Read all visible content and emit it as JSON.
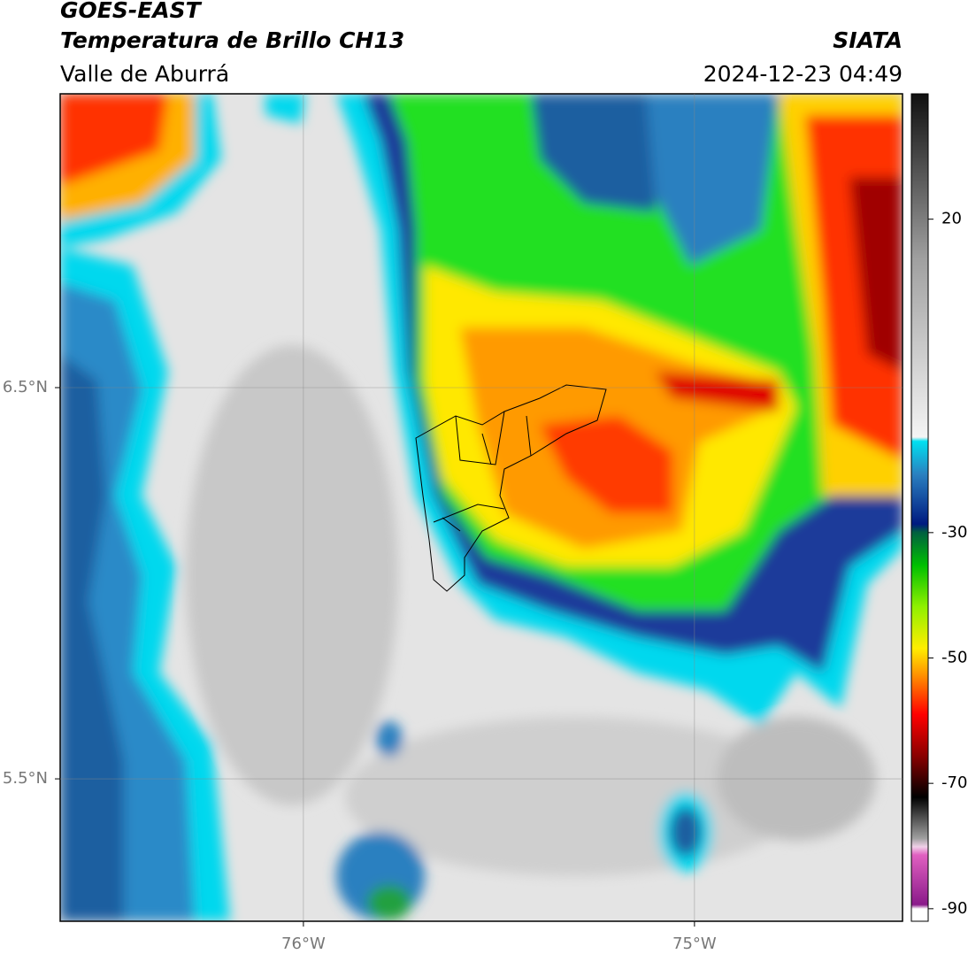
{
  "header": {
    "satellite": "GOES-EAST",
    "product": "Temperatura de Brillo CH13",
    "region": "Valle de Aburrá",
    "source": "SIATA",
    "timestamp": "2024-12-23 04:49"
  },
  "map": {
    "xlim": [
      -76.622,
      -74.468
    ],
    "ylim": [
      5.136,
      7.251
    ],
    "xticks": [
      {
        "value": -76,
        "label": "76°W"
      },
      {
        "value": -75,
        "label": "75°W"
      }
    ],
    "yticks": [
      {
        "value": 6.5,
        "label": "6.5°N"
      },
      {
        "value": 5.5,
        "label": "5.5°N"
      }
    ],
    "grid": true
  },
  "colorbar": {
    "lim": [
      -92,
      40
    ],
    "ticks": [
      20,
      -30,
      -50,
      -70,
      -90
    ]
  }
}
